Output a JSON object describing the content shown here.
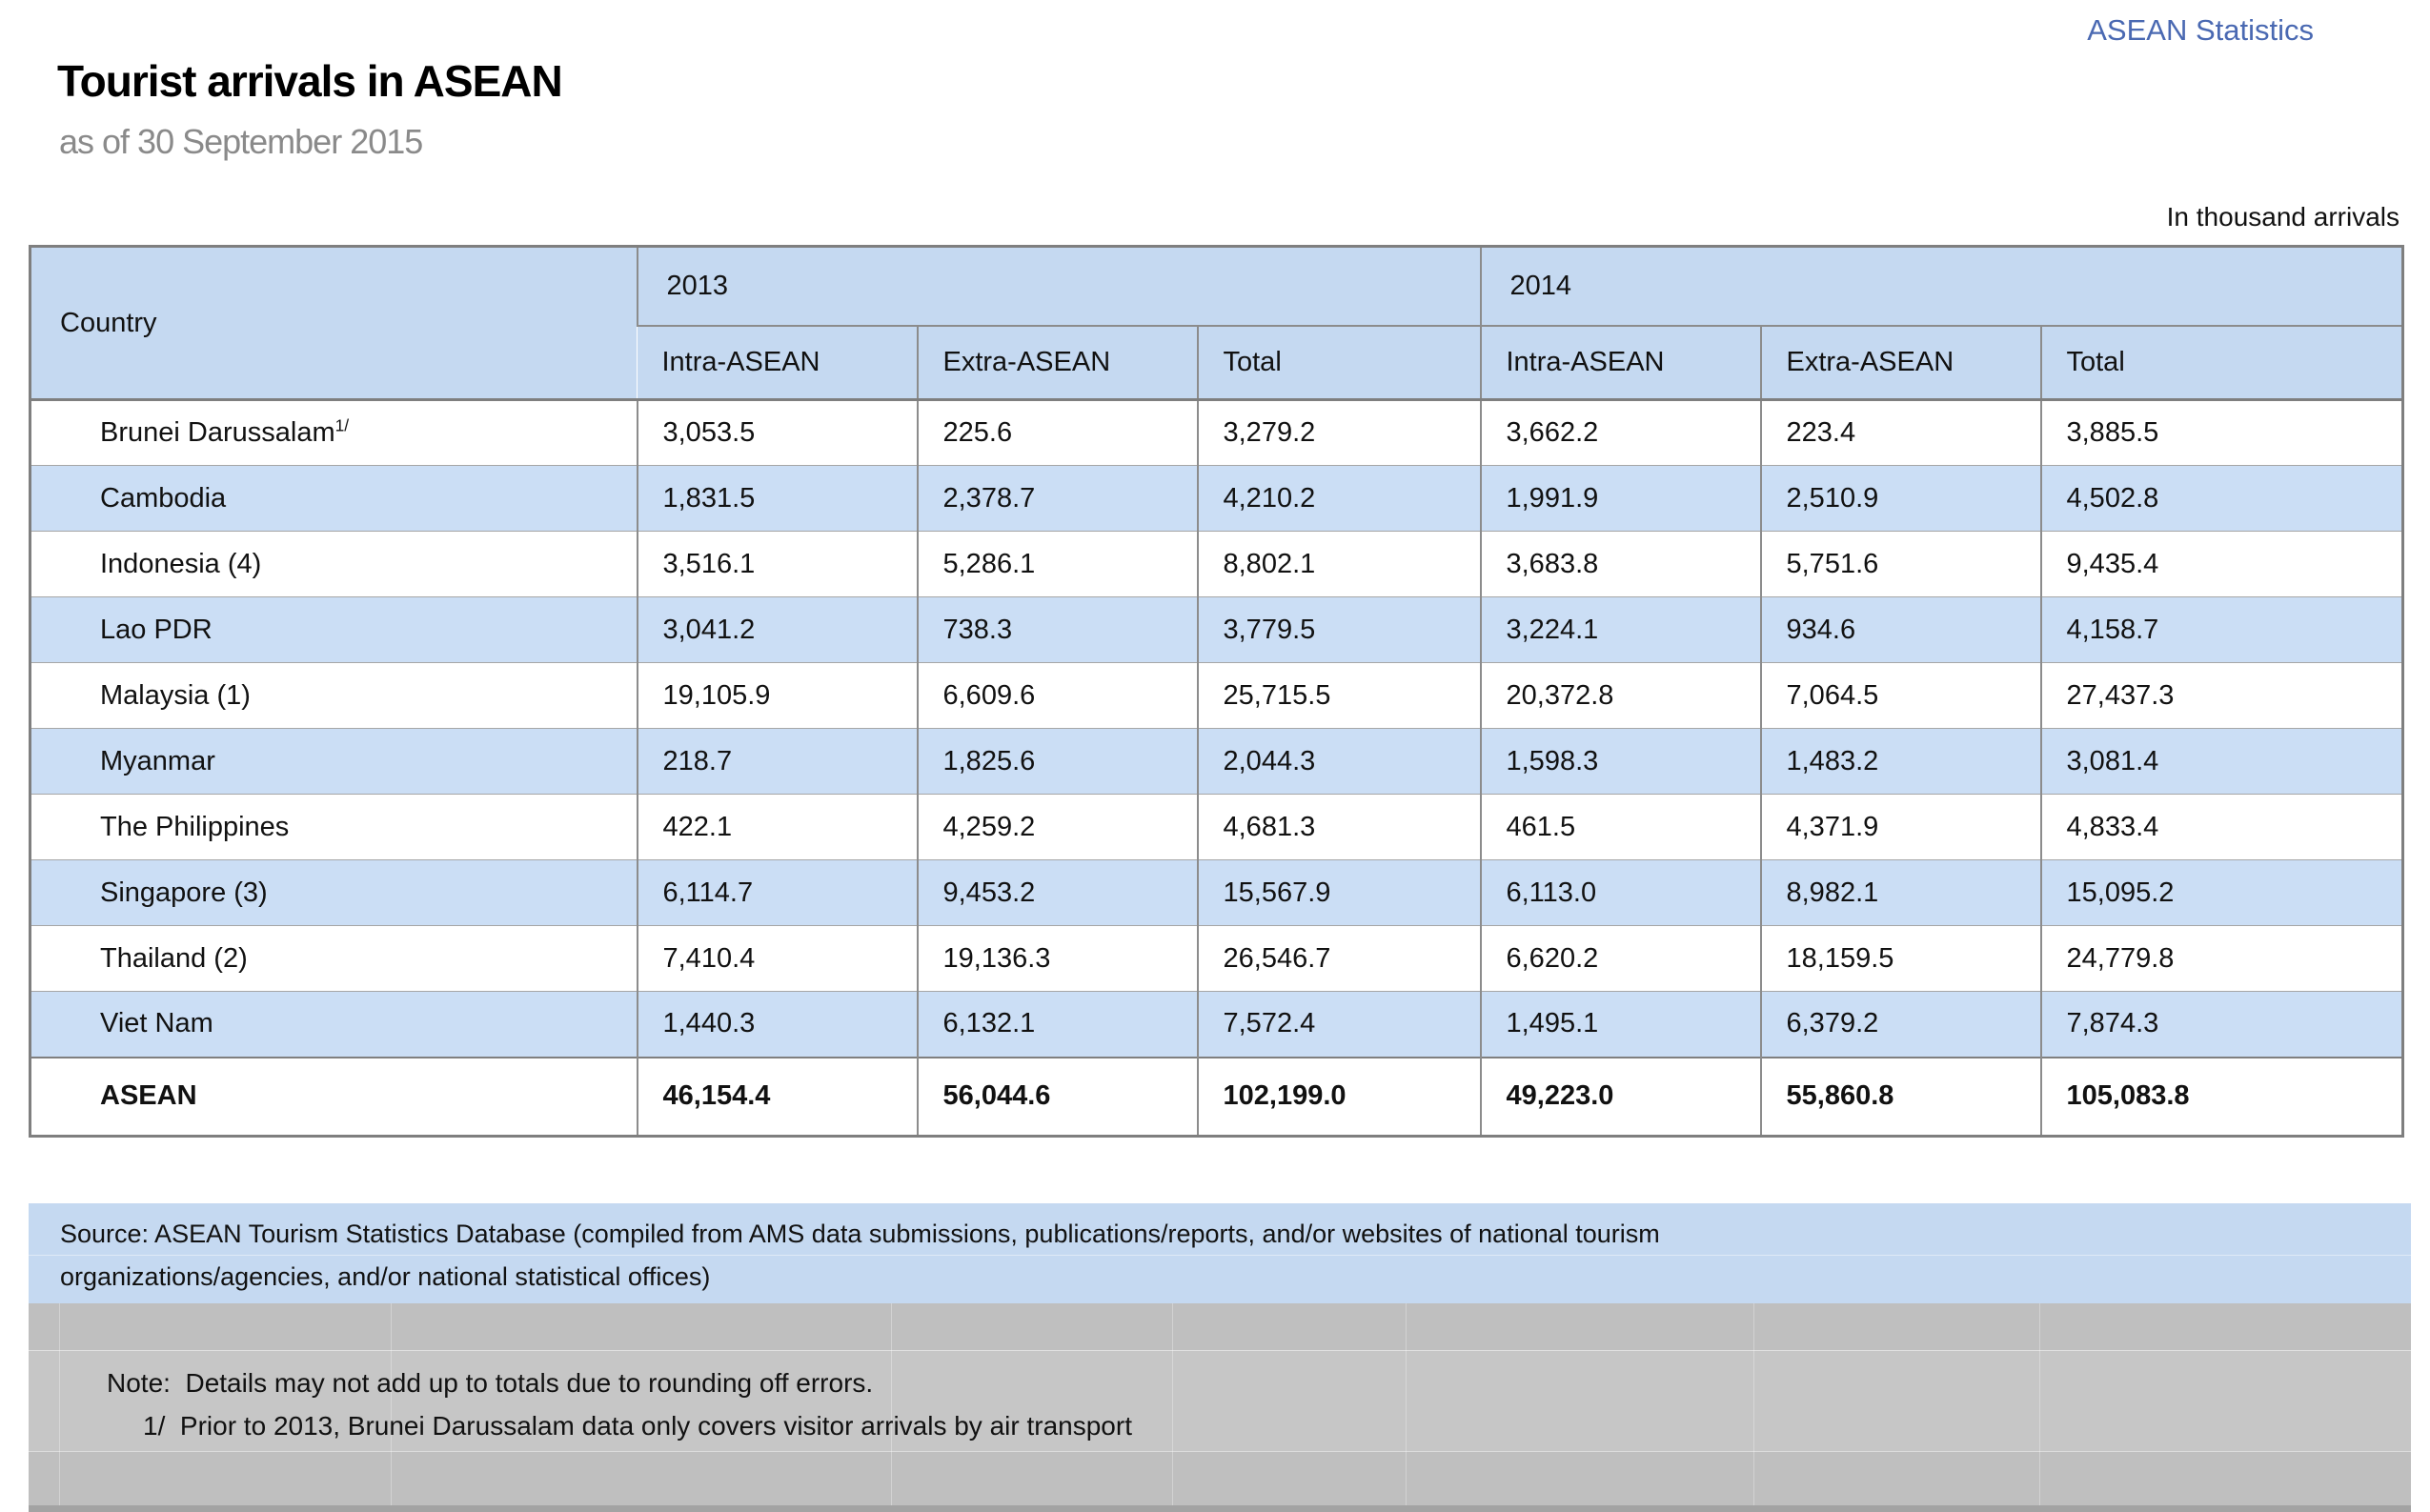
{
  "page": {
    "brand": "ASEAN Statistics",
    "title": "Tourist arrivals in ASEAN",
    "subtitle": "as of 30 September 2015",
    "unit_note": "In thousand arrivals"
  },
  "colors": {
    "header_blue": "#c5d9f1",
    "band_blue": "#cbdef5",
    "brand_blue": "#4a69b2",
    "gray_block": "#bfbfbf",
    "border_gray": "#7f7f7f"
  },
  "table": {
    "header": {
      "country": "Country",
      "year_2013": "2013",
      "year_2014": "2014",
      "sub": [
        "Intra-ASEAN",
        "Extra-ASEAN",
        "Total"
      ]
    },
    "rows": [
      {
        "country": "Brunei Darussalam",
        "sup": "1/",
        "values": [
          "3,053.5",
          "225.6",
          "3,279.2",
          "3,662.2",
          "223.4",
          "3,885.5"
        ]
      },
      {
        "country": "Cambodia",
        "values": [
          "1,831.5",
          "2,378.7",
          "4,210.2",
          "1,991.9",
          "2,510.9",
          "4,502.8"
        ]
      },
      {
        "country": "Indonesia (4)",
        "values": [
          "3,516.1",
          "5,286.1",
          "8,802.1",
          "3,683.8",
          "5,751.6",
          "9,435.4"
        ]
      },
      {
        "country": "Lao PDR",
        "values": [
          "3,041.2",
          "738.3",
          "3,779.5",
          "3,224.1",
          "934.6",
          "4,158.7"
        ]
      },
      {
        "country": "Malaysia (1)",
        "values": [
          "19,105.9",
          "6,609.6",
          "25,715.5",
          "20,372.8",
          "7,064.5",
          "27,437.3"
        ]
      },
      {
        "country": "Myanmar",
        "values": [
          "218.7",
          "1,825.6",
          "2,044.3",
          "1,598.3",
          "1,483.2",
          "3,081.4"
        ]
      },
      {
        "country": "The Philippines",
        "values": [
          "422.1",
          "4,259.2",
          "4,681.3",
          "461.5",
          "4,371.9",
          "4,833.4"
        ]
      },
      {
        "country": "Singapore (3)",
        "values": [
          "6,114.7",
          "9,453.2",
          "15,567.9",
          "6,113.0",
          "8,982.1",
          "15,095.2"
        ]
      },
      {
        "country": "Thailand (2)",
        "values": [
          "7,410.4",
          "19,136.3",
          "26,546.7",
          "6,620.2",
          "18,159.5",
          "24,779.8"
        ]
      },
      {
        "country": "Viet Nam",
        "values": [
          "1,440.3",
          "6,132.1",
          "7,572.4",
          "1,495.1",
          "6,379.2",
          "7,874.3"
        ]
      }
    ],
    "total_row": {
      "country": "ASEAN",
      "values": [
        "46,154.4",
        "56,044.6",
        "102,199.0",
        "49,223.0",
        "55,860.8",
        "105,083.8"
      ]
    }
  },
  "footer": {
    "source_line1": "Source: ASEAN Tourism Statistics Database (compiled from AMS data submissions, publications/reports, and/or websites of national tourism",
    "source_line2": "organizations/agencies, and/or national statistical offices)",
    "note_line": "Note:  Details may not add up to totals due to rounding off errors.",
    "footnote_line": "1/  Prior to 2013, Brunei Darussalam data only covers visitor arrivals by air transport"
  }
}
